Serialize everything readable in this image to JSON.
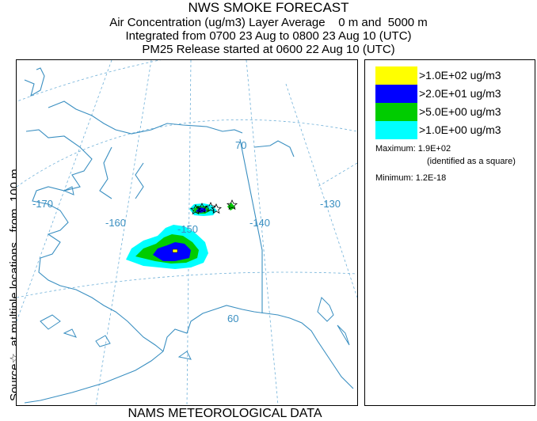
{
  "header": {
    "title": "NWS SMOKE FORECAST",
    "line2": "Air Concentration (ug/m3) Layer Average    0 m and  5000 m",
    "line3": "Integrated from 0700 23 Aug to 0800 23 Aug 10 (UTC)",
    "line4": "PM25 Release started at 0600 22 Aug 10 (UTC)"
  },
  "side_label": "Source☆  at multiple locations   from  100 m",
  "bottom_label": "NAMS METEOROLOGICAL DATA",
  "map": {
    "graticule_labels": {
      "lon_170": "-170",
      "lon_160": "-160",
      "lon_150": "-150",
      "lon_140": "-140",
      "lon_130": "-130",
      "lat_70": "70",
      "lat_60": "60"
    },
    "colors": {
      "coast": "#3a8fc1",
      "graticule": "#6fb0d8"
    }
  },
  "legend": {
    "items": [
      {
        "label": ">1.0E+02 ug/m3",
        "color": "#ffff00"
      },
      {
        "label": ">2.0E+01 ug/m3",
        "color": "#0000ff"
      },
      {
        "label": ">5.0E+00 ug/m3",
        "color": "#00cc00"
      },
      {
        "label": ">1.0E+00 ug/m3",
        "color": "#00ffff"
      }
    ],
    "maximum": "Maximum: 1.9E+02",
    "maximum_note": "(identified as a square)",
    "minimum": "Minimum: 1.2E-18"
  }
}
